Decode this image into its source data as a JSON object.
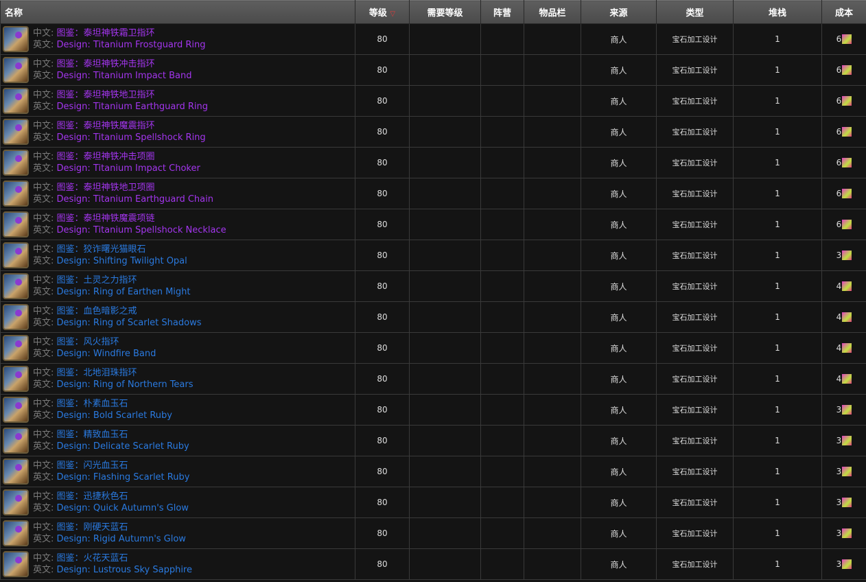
{
  "headers": {
    "name": "名称",
    "level": "等级",
    "req_level": "需要等级",
    "faction": "阵营",
    "slot": "物品栏",
    "source": "来源",
    "type": "类型",
    "stack": "堆栈",
    "cost": "成本"
  },
  "sort_icon": "triangle-down-icon",
  "labels": {
    "cn": "中文:",
    "en": "英文:"
  },
  "colors": {
    "epic": "#a335ee",
    "rare": "#2a7ae0"
  },
  "rows": [
    {
      "cn": "图鉴：泰坦神铁霜卫指环",
      "en": "Design: Titanium Frostguard Ring",
      "quality": "epic",
      "level": "80",
      "source": "商人",
      "type": "宝石加工设计",
      "stack": "1",
      "cost": "6"
    },
    {
      "cn": "图鉴：泰坦神铁冲击指环",
      "en": "Design: Titanium Impact Band",
      "quality": "epic",
      "level": "80",
      "source": "商人",
      "type": "宝石加工设计",
      "stack": "1",
      "cost": "6"
    },
    {
      "cn": "图鉴：泰坦神铁地卫指环",
      "en": "Design: Titanium Earthguard Ring",
      "quality": "epic",
      "level": "80",
      "source": "商人",
      "type": "宝石加工设计",
      "stack": "1",
      "cost": "6"
    },
    {
      "cn": "图鉴：泰坦神铁魔震指环",
      "en": "Design: Titanium Spellshock Ring",
      "quality": "epic",
      "level": "80",
      "source": "商人",
      "type": "宝石加工设计",
      "stack": "1",
      "cost": "6"
    },
    {
      "cn": "图鉴：泰坦神铁冲击项圈",
      "en": "Design: Titanium Impact Choker",
      "quality": "epic",
      "level": "80",
      "source": "商人",
      "type": "宝石加工设计",
      "stack": "1",
      "cost": "6"
    },
    {
      "cn": "图鉴：泰坦神铁地卫项圈",
      "en": "Design: Titanium Earthguard Chain",
      "quality": "epic",
      "level": "80",
      "source": "商人",
      "type": "宝石加工设计",
      "stack": "1",
      "cost": "6"
    },
    {
      "cn": "图鉴：泰坦神铁魔震项链",
      "en": "Design: Titanium Spellshock Necklace",
      "quality": "epic",
      "level": "80",
      "source": "商人",
      "type": "宝石加工设计",
      "stack": "1",
      "cost": "6"
    },
    {
      "cn": "图鉴：狡诈曙光猫眼石",
      "en": "Design: Shifting Twilight Opal",
      "quality": "rare",
      "level": "80",
      "source": "商人",
      "type": "宝石加工设计",
      "stack": "1",
      "cost": "3"
    },
    {
      "cn": "图鉴：土灵之力指环",
      "en": "Design: Ring of Earthen Might",
      "quality": "rare",
      "level": "80",
      "source": "商人",
      "type": "宝石加工设计",
      "stack": "1",
      "cost": "4"
    },
    {
      "cn": "图鉴：血色暗影之戒",
      "en": "Design: Ring of Scarlet Shadows",
      "quality": "rare",
      "level": "80",
      "source": "商人",
      "type": "宝石加工设计",
      "stack": "1",
      "cost": "4"
    },
    {
      "cn": "图鉴：风火指环",
      "en": "Design: Windfire Band",
      "quality": "rare",
      "level": "80",
      "source": "商人",
      "type": "宝石加工设计",
      "stack": "1",
      "cost": "4"
    },
    {
      "cn": "图鉴：北地泪珠指环",
      "en": "Design: Ring of Northern Tears",
      "quality": "rare",
      "level": "80",
      "source": "商人",
      "type": "宝石加工设计",
      "stack": "1",
      "cost": "4"
    },
    {
      "cn": "图鉴：朴素血玉石",
      "en": "Design: Bold Scarlet Ruby",
      "quality": "rare",
      "level": "80",
      "source": "商人",
      "type": "宝石加工设计",
      "stack": "1",
      "cost": "3"
    },
    {
      "cn": "图鉴：精致血玉石",
      "en": "Design: Delicate Scarlet Ruby",
      "quality": "rare",
      "level": "80",
      "source": "商人",
      "type": "宝石加工设计",
      "stack": "1",
      "cost": "3"
    },
    {
      "cn": "图鉴：闪光血玉石",
      "en": "Design: Flashing Scarlet Ruby",
      "quality": "rare",
      "level": "80",
      "source": "商人",
      "type": "宝石加工设计",
      "stack": "1",
      "cost": "3"
    },
    {
      "cn": "图鉴：迅捷秋色石",
      "en": "Design: Quick Autumn's Glow",
      "quality": "rare",
      "level": "80",
      "source": "商人",
      "type": "宝石加工设计",
      "stack": "1",
      "cost": "3"
    },
    {
      "cn": "图鉴：刚硬天蓝石",
      "en": "Design: Rigid Autumn's Glow",
      "quality": "rare",
      "level": "80",
      "source": "商人",
      "type": "宝石加工设计",
      "stack": "1",
      "cost": "3"
    },
    {
      "cn": "图鉴：火花天蓝石",
      "en": "Design: Lustrous Sky Sapphire",
      "quality": "rare",
      "level": "80",
      "source": "商人",
      "type": "宝石加工设计",
      "stack": "1",
      "cost": "3"
    }
  ]
}
